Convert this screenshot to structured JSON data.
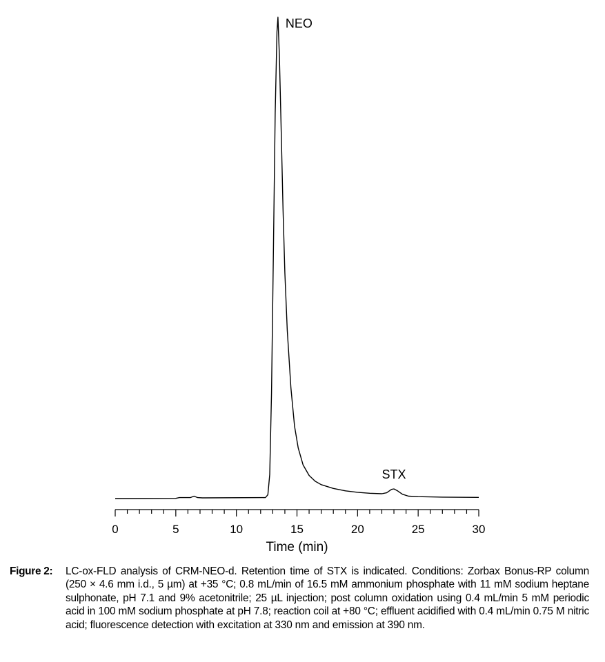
{
  "chart_data": {
    "type": "line",
    "title": "",
    "xlabel": "Time (min)",
    "ylabel": "",
    "xlim": [
      0,
      30
    ],
    "ylim": [
      0,
      100
    ],
    "x_ticks": [
      0,
      5,
      10,
      15,
      20,
      25,
      30
    ],
    "x_minor_tick_step": 1,
    "y_axis_shown": false,
    "grid": false,
    "line_color": "#000000",
    "series": [
      {
        "x": [
          0,
          5,
          5.3,
          6.2,
          6.5,
          6.8,
          7.2,
          12.4,
          12.6,
          12.75,
          12.9,
          13.05,
          13.2,
          13.35,
          13.43,
          13.55,
          13.7,
          13.85,
          14.0,
          14.2,
          14.5,
          14.8,
          15.1,
          15.5,
          16.0,
          16.5,
          17.0,
          18.0,
          19.0,
          20.0,
          21.0,
          22.0,
          22.4,
          22.8,
          23.0,
          23.3,
          23.7,
          24.2,
          25.0,
          27.0,
          30.0
        ],
        "y": [
          0,
          0.05,
          0.2,
          0.2,
          0.5,
          0.2,
          0.15,
          0.2,
          0.8,
          5,
          22,
          50,
          80,
          97,
          100,
          92,
          76,
          60,
          47,
          35,
          23,
          15,
          10.5,
          7,
          4.8,
          3.6,
          2.9,
          2.1,
          1.6,
          1.3,
          1.1,
          1.0,
          1.2,
          1.9,
          2.0,
          1.6,
          0.9,
          0.5,
          0.4,
          0.3,
          0.25
        ]
      }
    ],
    "annotations": [
      {
        "text": "NEO",
        "x": 13.43,
        "y": 100
      },
      {
        "text": "STX",
        "x": 23.0,
        "y": 2.0
      }
    ]
  },
  "caption": {
    "label": "Figure 2:",
    "text": "LC-ox-FLD analysis of CRM-NEO-d. Retention time of STX is indicated. Conditions: Zorbax Bonus-RP column (250 × 4.6 mm i.d., 5 µm) at +35 °C; 0.8 mL/min of 16.5 mM ammonium phosphate with 11 mM sodium heptane sulphonate, pH 7.1 and 9% acetonitrile; 25 µL injection; post column oxidation using 0.4 mL/min 5 mM periodic acid in 100 mM sodium phosphate at pH 7.8; reaction coil at +80 °C; effluent acidified with 0.4 mL/min 0.75 M nitric acid; fluorescence detection with excitation at 330 nm and emission at 390 nm."
  }
}
